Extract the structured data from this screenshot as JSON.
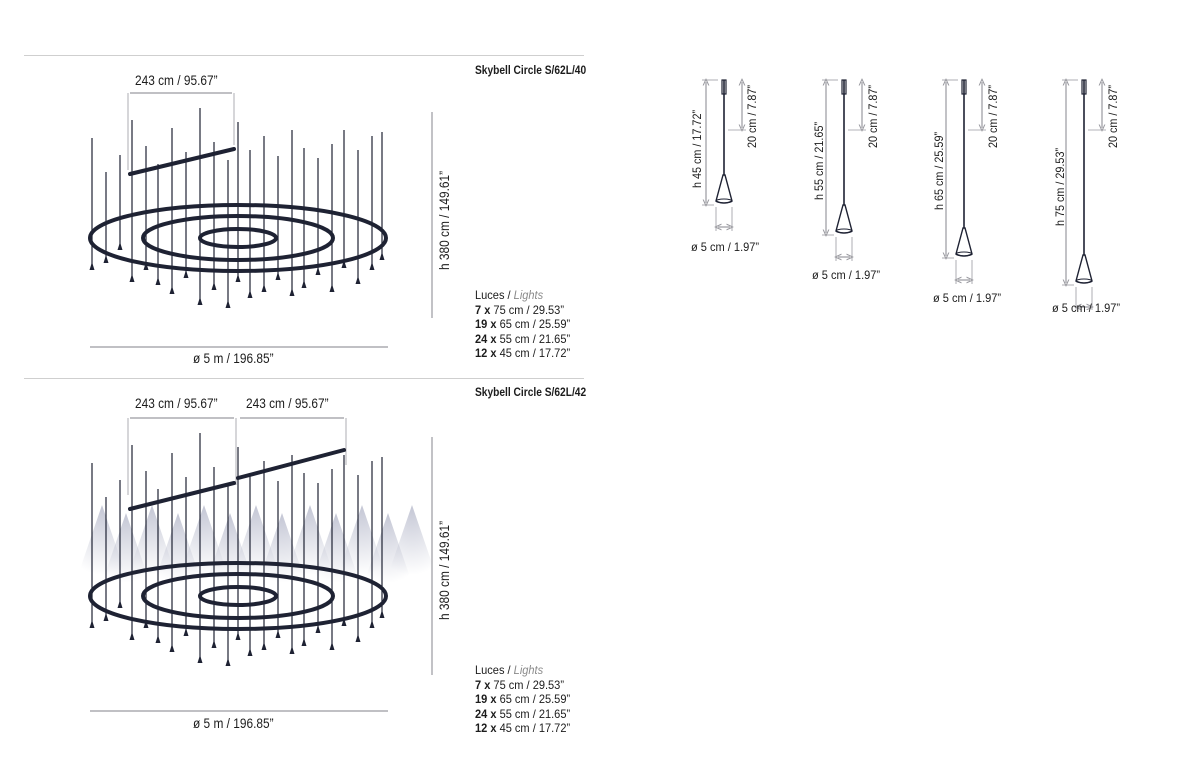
{
  "models": [
    {
      "title": "Skybell Circle S/62L/40",
      "width_dims": [
        "243 cm / 95.67”"
      ],
      "height_dim": "h 380 cm / 149.61”",
      "diameter_dim": "ø 5 m / 196.85”",
      "lights_label": "Luces",
      "lights_label_en": "Lights",
      "lights": [
        {
          "count": "7 x",
          "size": "75 cm / 29.53”"
        },
        {
          "count": "19 x",
          "size": "65 cm / 25.59”"
        },
        {
          "count": "24 x",
          "size": "55 cm / 21.65”"
        },
        {
          "count": "12 x",
          "size": "45 cm / 17.72”"
        }
      ]
    },
    {
      "title": "Skybell Circle S/62L/42",
      "width_dims": [
        "243 cm / 95.67”",
        "243 cm / 95.67”"
      ],
      "height_dim": "h 380 cm / 149.61”",
      "diameter_dim": "ø 5 m / 196.85”",
      "lights_label": "Luces",
      "lights_label_en": "Lights",
      "lights": [
        {
          "count": "7 x",
          "size": "75 cm / 29.53”"
        },
        {
          "count": "19 x",
          "size": "65 cm / 25.59”"
        },
        {
          "count": "24 x",
          "size": "55 cm / 21.65”"
        },
        {
          "count": "12 x",
          "size": "45 cm / 17.72”"
        }
      ]
    }
  ],
  "pendants": [
    {
      "height": "h 45 cm / 17.72”",
      "cable": "20 cm / 7.87”",
      "diameter": "ø 5 cm / 1.97”"
    },
    {
      "height": "h 55 cm / 21.65”",
      "cable": "20 cm / 7.87”",
      "diameter": "ø 5 cm / 1.97”"
    },
    {
      "height": "h 65 cm / 25.59”",
      "cable": "20 cm / 7.87”",
      "diameter": "ø 5 cm / 1.97”"
    },
    {
      "height": "h 75 cm / 29.53”",
      "cable": "20 cm / 7.87”",
      "diameter": "ø 5 cm / 1.97”"
    }
  ],
  "colors": {
    "fixture": "#1e2233",
    "dimension": "#9a9aa0",
    "rule": "#cfcfcf",
    "glow": "#b9bccd"
  }
}
